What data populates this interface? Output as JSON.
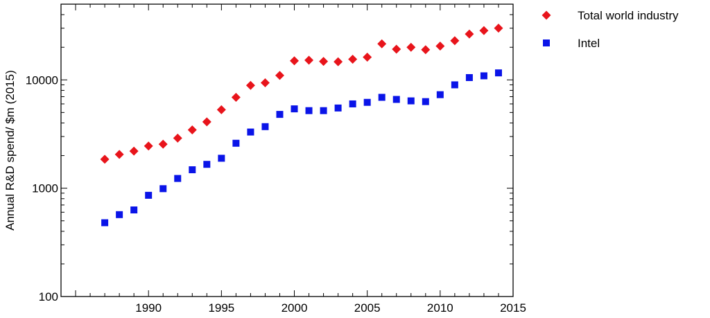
{
  "chart_data": {
    "type": "scatter",
    "title": "",
    "xlabel": "",
    "ylabel": "Annual R&D spend/ $m (2015)",
    "y_scale": "log",
    "xlim": [
      1984,
      2015
    ],
    "ylim": [
      100,
      50000
    ],
    "x_ticks": [
      1990,
      1995,
      2000,
      2005,
      2010,
      2015
    ],
    "x_tick_labels": [
      "1990",
      "1995",
      "2000",
      "2005",
      "2010",
      "2015"
    ],
    "y_ticks": [
      100,
      1000,
      10000
    ],
    "y_tick_labels": [
      "100",
      "1000",
      "10000"
    ],
    "grid": false,
    "legend_position": "outside-top-right",
    "series": [
      {
        "name": "Total world industry",
        "marker": "diamond",
        "color": "#e8141b",
        "x": [
          1987,
          1988,
          1989,
          1990,
          1991,
          1992,
          1993,
          1994,
          1995,
          1996,
          1997,
          1998,
          1999,
          2000,
          2001,
          2002,
          2003,
          2004,
          2005,
          2006,
          2007,
          2008,
          2009,
          2010,
          2011,
          2012,
          2013,
          2014
        ],
        "y": [
          1850,
          2050,
          2200,
          2450,
          2550,
          2900,
          3450,
          4100,
          5300,
          6900,
          8900,
          9400,
          11000,
          15000,
          15200,
          14800,
          14700,
          15500,
          16200,
          21500,
          19200,
          20000,
          19000,
          20500,
          23000,
          26500,
          28500,
          30000
        ]
      },
      {
        "name": "Intel",
        "marker": "square",
        "color": "#0a14e8",
        "x": [
          1987,
          1988,
          1989,
          1990,
          1991,
          1992,
          1993,
          1994,
          1995,
          1996,
          1997,
          1998,
          1999,
          2000,
          2001,
          2002,
          2003,
          2004,
          2005,
          2006,
          2007,
          2008,
          2009,
          2010,
          2011,
          2012,
          2013,
          2014
        ],
        "y": [
          480,
          570,
          630,
          860,
          990,
          1230,
          1480,
          1660,
          1890,
          2600,
          3300,
          3700,
          4800,
          5400,
          5200,
          5200,
          5500,
          6000,
          6200,
          6900,
          6600,
          6400,
          6300,
          7300,
          9000,
          10500,
          10900,
          11600
        ]
      }
    ]
  }
}
